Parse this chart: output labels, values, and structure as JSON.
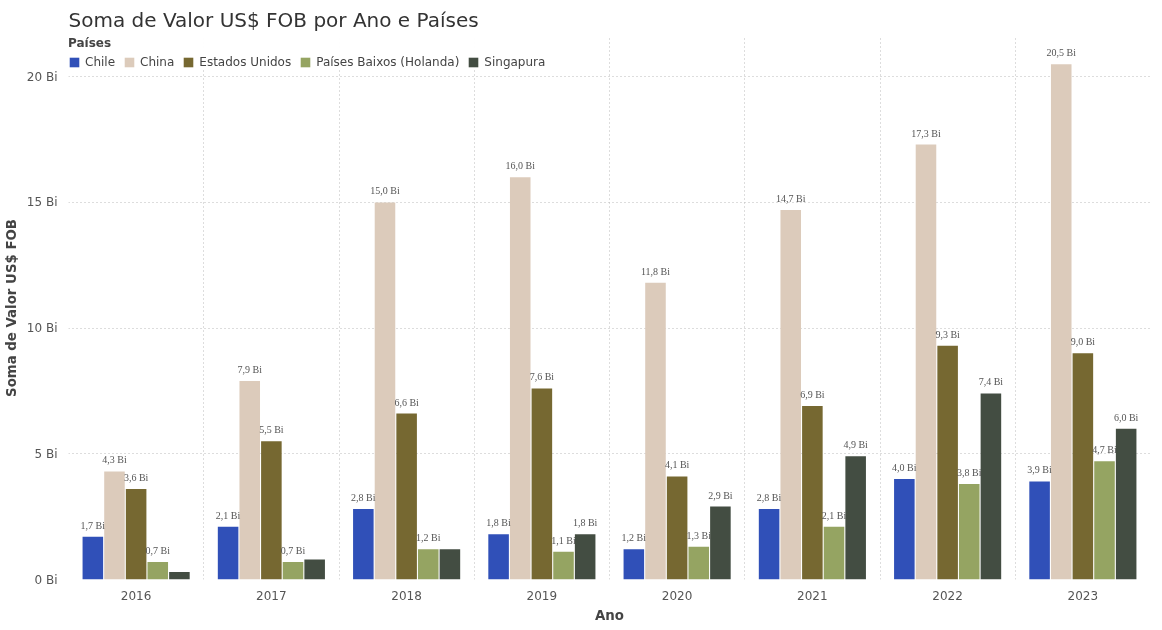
{
  "chart_data": {
    "type": "bar",
    "title": "Soma de Valor US$ FOB por Ano e Países",
    "xlabel": "Ano",
    "ylabel": "Soma de Valor US$ FOB",
    "legend_title": "Países",
    "categories": [
      "2016",
      "2017",
      "2018",
      "2019",
      "2020",
      "2021",
      "2022",
      "2023"
    ],
    "series": [
      {
        "name": "Chile",
        "color": "#3050b8",
        "values": [
          1.7,
          2.1,
          2.8,
          1.8,
          1.2,
          2.8,
          4.0,
          3.9
        ],
        "value_labels": [
          "1,7 Bi",
          "2,1 Bi",
          "2,8 Bi",
          "1,8 Bi",
          "1,2 Bi",
          "2,8 Bi",
          "4,0 Bi",
          "3,9 Bi"
        ]
      },
      {
        "name": "China",
        "color": "#dccbbb",
        "values": [
          4.3,
          7.9,
          15.0,
          16.0,
          11.8,
          14.7,
          17.3,
          20.5
        ],
        "value_labels": [
          "4,3 Bi",
          "7,9 Bi",
          "15,0 Bi",
          "16,0 Bi",
          "11,8 Bi",
          "14,7 Bi",
          "17,3 Bi",
          "20,5 Bi"
        ]
      },
      {
        "name": "Estados Unidos",
        "color": "#766831",
        "values": [
          3.6,
          5.5,
          6.6,
          7.6,
          4.1,
          6.9,
          9.3,
          9.0
        ],
        "value_labels": [
          "3,6 Bi",
          "5,5 Bi",
          "6,6 Bi",
          "7,6 Bi",
          "4,1 Bi",
          "6,9 Bi",
          "9,3 Bi",
          "9,0 Bi"
        ]
      },
      {
        "name": "Países Baixos (Holanda)",
        "color": "#95a462",
        "values": [
          0.7,
          0.7,
          1.2,
          1.1,
          1.3,
          2.1,
          3.8,
          4.7
        ],
        "value_labels": [
          "0,7 Bi",
          "0,7 Bi",
          "1,2 Bi",
          "1,1 Bi",
          "1,3 Bi",
          "2,1 Bi",
          "3,8 Bi",
          "4,7 Bi"
        ]
      },
      {
        "name": "Singapura",
        "color": "#434d42",
        "values": [
          0.3,
          0.8,
          1.2,
          1.8,
          2.9,
          4.9,
          7.4,
          6.0
        ],
        "value_labels": [
          null,
          null,
          null,
          "1,8 Bi",
          "2,9 Bi",
          "4,9 Bi",
          "7,4 Bi",
          "6,0 Bi"
        ]
      }
    ],
    "ylim": [
      0,
      21.6
    ],
    "yticks": [
      {
        "value": 0,
        "label": "0 Bi"
      },
      {
        "value": 5,
        "label": "5 Bi"
      },
      {
        "value": 10,
        "label": "10 Bi"
      },
      {
        "value": 15,
        "label": "15 Bi"
      },
      {
        "value": 20,
        "label": "20 Bi"
      }
    ],
    "grid": true,
    "legend": "top left"
  }
}
